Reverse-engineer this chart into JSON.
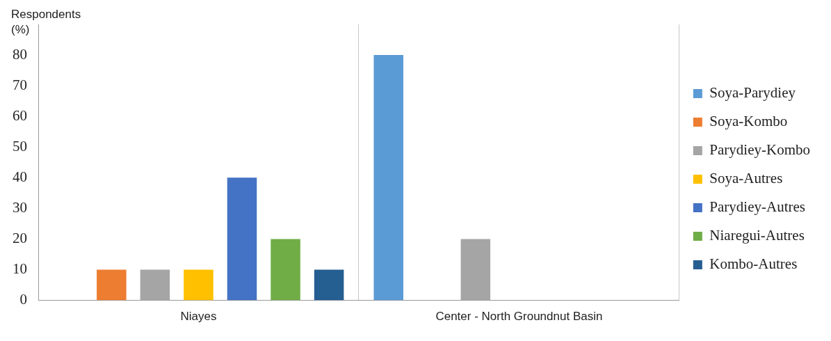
{
  "chart_data": {
    "type": "bar",
    "ylabel": "Respondents (%)",
    "categories": [
      "Niayes",
      "Center - North Groundnut Basin"
    ],
    "series": [
      {
        "name": "Soya-Parydiey",
        "color": "#5b9bd5",
        "values": [
          0,
          80
        ]
      },
      {
        "name": "Soya-Kombo",
        "color": "#ed7d31",
        "values": [
          10,
          0
        ]
      },
      {
        "name": "Parydiey-Kombo",
        "color": "#a5a5a5",
        "values": [
          10,
          20
        ]
      },
      {
        "name": "Soya-Autres",
        "color": "#ffc000",
        "values": [
          10,
          0
        ]
      },
      {
        "name": "Parydiey-Autres",
        "color": "#4472c4",
        "values": [
          40,
          0
        ]
      },
      {
        "name": "Niaregui-Autres",
        "color": "#70ad47",
        "values": [
          20,
          0
        ]
      },
      {
        "name": "Kombo-Autres",
        "color": "#255e91",
        "values": [
          10,
          0
        ]
      }
    ],
    "ylim": [
      0,
      90
    ],
    "yticks": [
      0,
      10,
      20,
      30,
      40,
      50,
      60,
      70,
      80
    ],
    "grid": "x",
    "legend": "right"
  }
}
